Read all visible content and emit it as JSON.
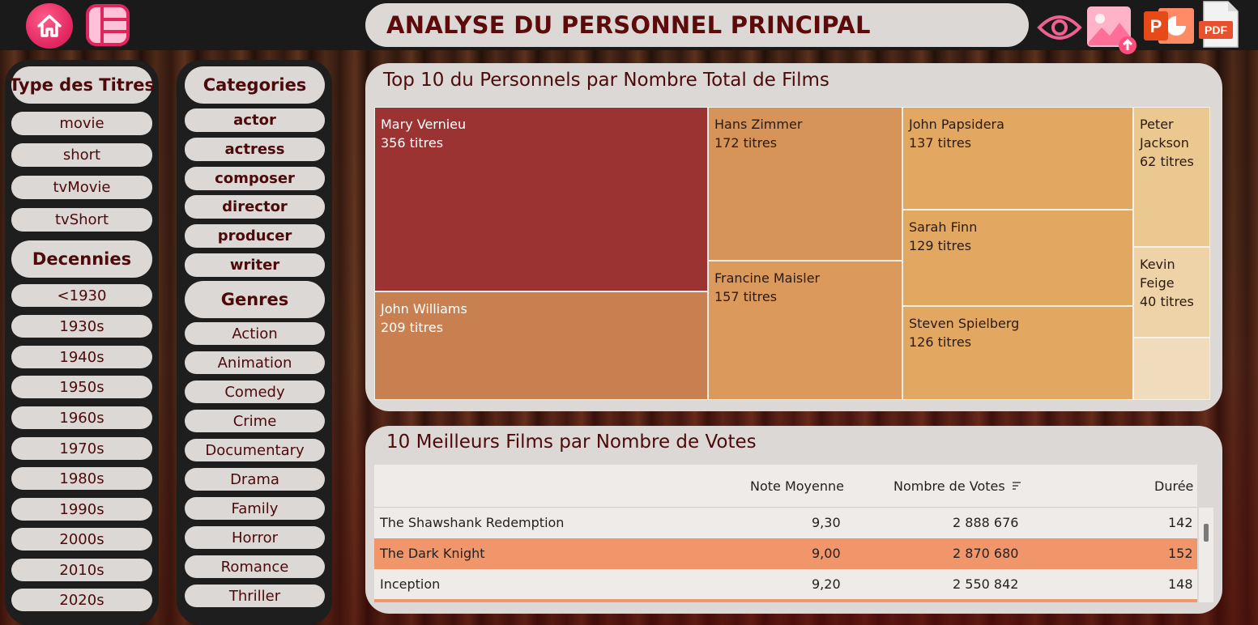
{
  "header": {
    "title": "ANALYSE DU PERSONNEL PRINCIPAL",
    "icons": [
      "home-icon",
      "layout-icon",
      "eye-icon",
      "image-upload-icon",
      "powerpoint-icon",
      "pdf-icon"
    ],
    "pdf_label": "PDF",
    "ppt_label": "P"
  },
  "filters": {
    "type_title": "Type des Titres",
    "types": [
      "movie",
      "short",
      "tvMovie",
      "tvShort"
    ],
    "decades_title": "Decennies",
    "decades": [
      "<1930",
      "1930s",
      "1940s",
      "1950s",
      "1960s",
      "1970s",
      "1980s",
      "1990s",
      "2000s",
      "2010s",
      "2020s"
    ],
    "categories_title": "Categories",
    "categories": [
      "actor",
      "actress",
      "composer",
      "director",
      "producer",
      "writer"
    ],
    "genres_title": "Genres",
    "genres": [
      "Action",
      "Animation",
      "Comedy",
      "Crime",
      "Documentary",
      "Drama",
      "Family",
      "Horror",
      "Romance",
      "Thriller"
    ]
  },
  "treemap": {
    "title": "Top 10 du Personnels par Nombre Total de Films",
    "items": [
      {
        "name": "Mary Vernieu",
        "label": "356 titres",
        "value": 356,
        "color": "#9b3333"
      },
      {
        "name": "John Williams",
        "label": "209 titres",
        "value": 209,
        "color": "#c98050"
      },
      {
        "name": "Hans Zimmer",
        "label": "172 titres",
        "value": 172,
        "color": "#d69458"
      },
      {
        "name": "Francine Maisler",
        "label": "157 titres",
        "value": 157,
        "color": "#db9a5c"
      },
      {
        "name": "John Papsidera",
        "label": "137 titres",
        "value": 137,
        "color": "#e2a862"
      },
      {
        "name": "Sarah Finn",
        "label": "129 titres",
        "value": 129,
        "color": "#e2a862"
      },
      {
        "name": "Steven Spielberg",
        "label": "126 titres",
        "value": 126,
        "color": "#e2a862"
      },
      {
        "name": "Peter Jackson",
        "label": "62 titres",
        "value": 62,
        "color": "#ebc88f"
      },
      {
        "name": "Kevin Feige",
        "label": "40 titres",
        "value": 40,
        "color": "#eed3a8"
      },
      {
        "name": "",
        "label": "",
        "value": null,
        "color": "#f0dcbd"
      }
    ]
  },
  "table": {
    "title": "10 Meilleurs Films par Nombre de Votes",
    "columns": [
      "Note Moyenne",
      "Nombre de Votes",
      "Durée"
    ],
    "sort_icon": "sort-descending-icon",
    "rows": [
      {
        "title": "The Shawshank Redemption",
        "note": "9,30",
        "votes": "2 888 676",
        "duree": "142",
        "highlight": false
      },
      {
        "title": "The Dark Knight",
        "note": "9,00",
        "votes": "2 870 680",
        "duree": "152",
        "highlight": true
      },
      {
        "title": "Inception",
        "note": "9,20",
        "votes": "2 550 842",
        "duree": "148",
        "highlight": false
      }
    ],
    "highlight_color": "#f0966a"
  }
}
